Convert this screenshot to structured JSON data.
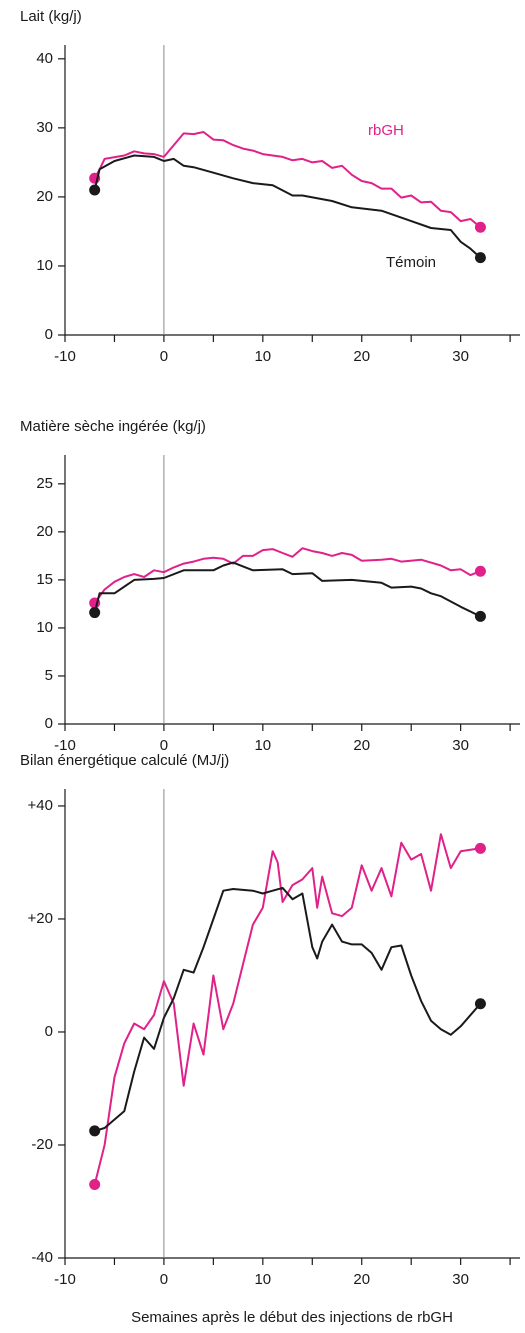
{
  "chart_data": [
    {
      "type": "line",
      "title": "Lait (kg/j)",
      "xlim": [
        -10,
        36
      ],
      "xticks": [
        -10,
        0,
        10,
        20,
        30
      ],
      "xminorticks": [
        -5,
        5,
        15,
        25,
        35
      ],
      "xline": 0,
      "ylim": [
        0,
        42
      ],
      "yticks": [
        0,
        10,
        20,
        30,
        40
      ],
      "series": [
        {
          "name": "rbGH",
          "color": "#e0218a",
          "x": [
            -7,
            -6.5,
            -6,
            -4,
            -3,
            -2,
            -1,
            0,
            1,
            2,
            3,
            4,
            5,
            6,
            7,
            8,
            9,
            10,
            11,
            12,
            13,
            14,
            15,
            16,
            17,
            18,
            19,
            20,
            21,
            22,
            23,
            24,
            25,
            26,
            27,
            28,
            29,
            30,
            31,
            32
          ],
          "values": [
            22.7,
            24,
            25.5,
            26,
            26.6,
            26.3,
            26.2,
            25.8,
            27.5,
            29.2,
            29.1,
            29.4,
            28.3,
            28.2,
            27.5,
            27,
            26.7,
            26.2,
            26,
            25.8,
            25.3,
            25.5,
            25,
            25.2,
            24.2,
            24.5,
            23.2,
            22.3,
            22,
            21.2,
            21.2,
            19.9,
            20.2,
            19.2,
            19.3,
            18,
            17.8,
            16.5,
            16.8,
            15.6
          ]
        },
        {
          "name": "Témoin",
          "color": "#1a1a1a",
          "x": [
            -7,
            -6.5,
            -5,
            -3,
            -1,
            0,
            1,
            2,
            3,
            5,
            7,
            9,
            11,
            13,
            14,
            17,
            19,
            22,
            25,
            27,
            29,
            30,
            31,
            32
          ],
          "values": [
            21,
            24,
            25.2,
            26,
            25.8,
            25.2,
            25.5,
            24.5,
            24.3,
            23.5,
            22.7,
            22,
            21.7,
            20.2,
            20.2,
            19.4,
            18.5,
            18,
            16.5,
            15.5,
            15.2,
            13.5,
            12.5,
            11.2
          ]
        }
      ]
    },
    {
      "type": "line",
      "title": "Matière sèche ingérée (kg/j)",
      "xlim": [
        -10,
        36
      ],
      "xticks": [
        -10,
        0,
        10,
        20,
        30
      ],
      "xminorticks": [
        -5,
        5,
        15,
        25,
        35
      ],
      "xline": 0,
      "ylim": [
        0,
        28
      ],
      "yticks": [
        0,
        5,
        10,
        15,
        20,
        25
      ],
      "series": [
        {
          "color": "#e0218a",
          "x": [
            -7,
            -6,
            -5,
            -4,
            -3,
            -2,
            -1,
            0,
            1,
            2,
            3,
            4,
            5,
            6,
            7,
            8,
            9,
            10,
            11,
            12,
            13,
            14,
            15,
            16,
            17,
            18,
            19,
            20,
            22,
            23,
            24,
            26,
            28,
            29,
            30,
            31,
            32
          ],
          "values": [
            12.6,
            14,
            14.8,
            15.3,
            15.6,
            15.3,
            16,
            15.8,
            16.3,
            16.7,
            16.9,
            17.2,
            17.3,
            17.2,
            16.7,
            17.5,
            17.5,
            18.1,
            18.2,
            17.8,
            17.4,
            18.3,
            18,
            17.8,
            17.5,
            17.8,
            17.6,
            17,
            17.1,
            17.2,
            16.9,
            17.1,
            16.5,
            16,
            16.1,
            15.5,
            15.9
          ]
        },
        {
          "color": "#1a1a1a",
          "x": [
            -7,
            -6.5,
            -5,
            -3,
            -1,
            0,
            2,
            5,
            6,
            7,
            8,
            9,
            12,
            13,
            15,
            16,
            19,
            22,
            23,
            25,
            26,
            27,
            28,
            30,
            32
          ],
          "values": [
            11.6,
            13.6,
            13.6,
            15,
            15.1,
            15.2,
            16,
            16,
            16.5,
            16.8,
            16.4,
            16,
            16.1,
            15.6,
            15.7,
            14.9,
            15,
            14.7,
            14.2,
            14.3,
            14.1,
            13.6,
            13.3,
            12.2,
            11.2
          ]
        }
      ]
    },
    {
      "type": "line",
      "title": "Bilan énergétique calculé (MJ/j)",
      "x_label": "Semaines après le début des injections de rbGH",
      "xlim": [
        -10,
        36
      ],
      "xticks": [
        -10,
        0,
        10,
        20,
        30
      ],
      "xminorticks": [
        -5,
        5,
        15,
        25,
        35
      ],
      "xline": 0,
      "ylim": [
        -40,
        43
      ],
      "yticks": [
        -40,
        -20,
        0,
        {
          "value": 20,
          "label": "+20"
        },
        {
          "value": 40,
          "label": "+40"
        }
      ],
      "series": [
        {
          "color": "#e0218a",
          "x": [
            -7,
            -6,
            -5,
            -4,
            -3,
            -2,
            -1,
            0,
            1,
            2,
            3,
            4,
            5,
            6,
            7,
            8,
            9,
            10,
            11,
            11.5,
            12,
            13,
            14,
            15,
            15.5,
            16,
            17,
            18,
            19,
            20,
            21,
            22,
            23,
            24,
            25,
            26,
            27,
            28,
            29,
            30,
            32
          ],
          "values": [
            -27,
            -20,
            -8,
            -2,
            1.5,
            0.5,
            3,
            9,
            5,
            -9.5,
            1.5,
            -4,
            10,
            0.5,
            5,
            12,
            19,
            22,
            32,
            30,
            23,
            26,
            27,
            29,
            22,
            27.5,
            21,
            20.5,
            22,
            29.5,
            25,
            29,
            24,
            33.5,
            30.5,
            31.5,
            25,
            35,
            29,
            32,
            32.5
          ]
        },
        {
          "color": "#1a1a1a",
          "x": [
            -7,
            -6,
            -4,
            -3,
            -2,
            -1,
            0,
            1,
            2,
            3,
            4,
            5,
            6,
            7,
            9,
            10,
            11,
            12,
            13,
            14,
            15,
            15.5,
            16,
            17,
            18,
            19,
            20,
            21,
            22,
            23,
            24,
            25,
            26,
            27,
            28,
            29,
            30,
            32
          ],
          "values": [
            -17.5,
            -17,
            -14,
            -7,
            -1,
            -3,
            2.5,
            6,
            11,
            10.5,
            15,
            20,
            25,
            25.3,
            25,
            24.5,
            25,
            25.5,
            23.5,
            24.5,
            15,
            13,
            16,
            19,
            16,
            15.5,
            15.5,
            14,
            11,
            15,
            15.3,
            10,
            5.5,
            2,
            0.5,
            -0.5,
            1,
            5
          ]
        }
      ]
    }
  ]
}
